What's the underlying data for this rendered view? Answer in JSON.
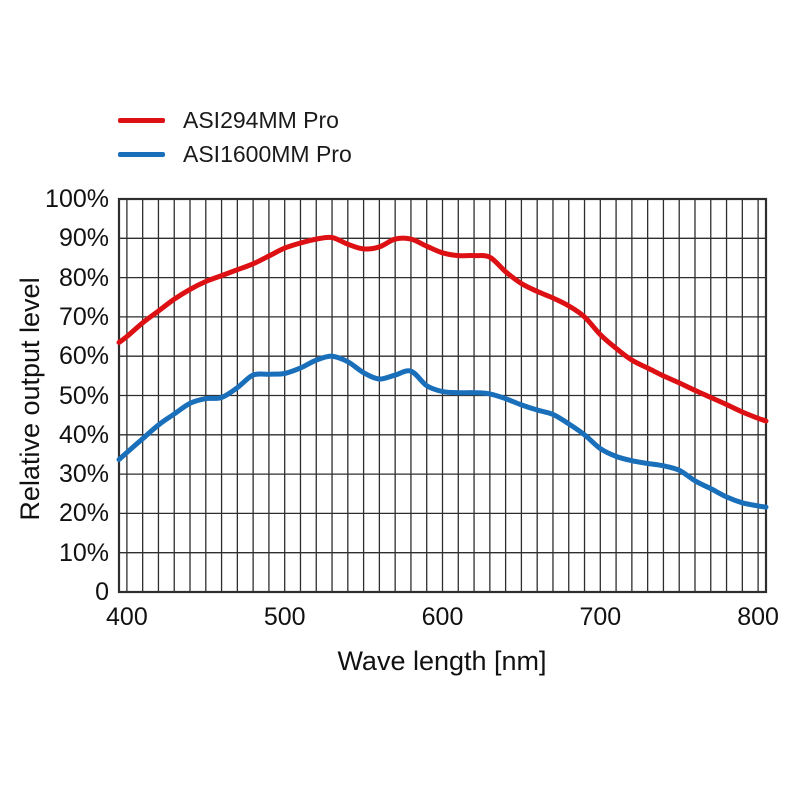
{
  "legend": {
    "entries": [
      {
        "label": "ASI294MM Pro",
        "color": "#dd1114"
      },
      {
        "label": "ASI1600MM Pro",
        "color": "#1a6fba"
      }
    ]
  },
  "chart_data": {
    "type": "line",
    "title": "",
    "xlabel": "Wave length [nm]",
    "ylabel": "Relative output level",
    "xlim": [
      395,
      805
    ],
    "ylim": [
      0,
      100
    ],
    "grid": {
      "on": true,
      "x_step_nm": 10,
      "y_step_pct": 10,
      "color": "#2e2e2e"
    },
    "x_ticks": [
      {
        "value": 400,
        "label": "400"
      },
      {
        "value": 500,
        "label": "500"
      },
      {
        "value": 600,
        "label": "600"
      },
      {
        "value": 700,
        "label": "700"
      },
      {
        "value": 800,
        "label": "800"
      }
    ],
    "y_ticks": [
      {
        "value": 0,
        "label": "0"
      },
      {
        "value": 10,
        "label": "10%"
      },
      {
        "value": 20,
        "label": "20%"
      },
      {
        "value": 30,
        "label": "30%"
      },
      {
        "value": 40,
        "label": "40%"
      },
      {
        "value": 50,
        "label": "50%"
      },
      {
        "value": 60,
        "label": "60%"
      },
      {
        "value": 70,
        "label": "70%"
      },
      {
        "value": 80,
        "label": "80%"
      },
      {
        "value": 90,
        "label": "90%"
      },
      {
        "value": 100,
        "label": "100%"
      }
    ],
    "x": [
      395,
      400,
      410,
      420,
      430,
      440,
      450,
      460,
      470,
      480,
      490,
      500,
      510,
      520,
      530,
      540,
      550,
      560,
      570,
      580,
      590,
      600,
      610,
      620,
      630,
      640,
      650,
      660,
      670,
      680,
      690,
      700,
      710,
      720,
      730,
      740,
      750,
      760,
      770,
      780,
      790,
      800,
      805
    ],
    "series": [
      {
        "name": "ASI294MM Pro",
        "color": "#dd1114",
        "values": [
          63.5,
          65,
          68.5,
          71.5,
          74.5,
          77,
          79,
          80.5,
          82,
          83.5,
          85.5,
          87.5,
          88.8,
          89.8,
          90.2,
          88.5,
          87.3,
          87.8,
          89.8,
          89.8,
          88,
          86.3,
          85.6,
          85.6,
          85.2,
          81.5,
          78.5,
          76.5,
          74.8,
          72.8,
          70,
          65.5,
          62,
          59,
          57,
          55,
          53.2,
          51.3,
          49.5,
          47.7,
          45.8,
          44.2,
          43.5
        ]
      },
      {
        "name": "ASI1600MM Pro",
        "color": "#1a6fba",
        "values": [
          33.7,
          35.5,
          39,
          42.5,
          45.3,
          48,
          49.2,
          49.5,
          52,
          55.2,
          55.4,
          55.6,
          57,
          59,
          60,
          58.6,
          55.8,
          54.2,
          55.2,
          56.2,
          52.5,
          51,
          50.7,
          50.7,
          50.4,
          49.2,
          47.6,
          46.3,
          45.2,
          42.8,
          40,
          36.5,
          34.5,
          33.4,
          32.7,
          32.1,
          31,
          28.3,
          26.3,
          24.2,
          22.7,
          21.9,
          21.6
        ]
      }
    ]
  }
}
